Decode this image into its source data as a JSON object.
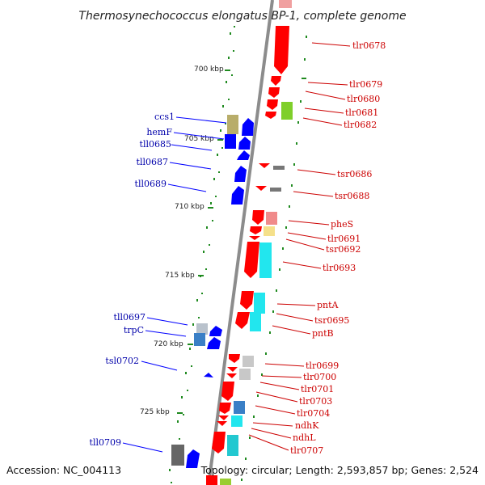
{
  "title": "Thermosynechococcus elongatus BP-1, complete genome",
  "footer": {
    "accession": "Accession: NC_004113",
    "summary": "Topology: circular; Length: 2,593,857 bp; Genes: 2,524"
  },
  "colors": {
    "forward_label": "#cc0000",
    "reverse_label": "#0000aa",
    "forward_gene": "#ff0000",
    "reverse_gene": "#0000ff",
    "backbone": "#8c8c8c",
    "tick": "#1f8a1f"
  },
  "scale_labels": [
    "700 kbp",
    "705 kbp",
    "710 kbp",
    "715 kbp",
    "720 kbp",
    "725 kbp"
  ],
  "reverse_genes": [
    "ccs1",
    "hemF",
    "tll0685",
    "tll0687",
    "tll0689",
    "tll0697",
    "trpC",
    "tsl0702",
    "tll0709"
  ],
  "forward_genes": [
    "tlr0678",
    "tlr0679",
    "tlr0680",
    "tlr0681",
    "tlr0682",
    "tsr0686",
    "tsr0688",
    "pheS",
    "tlr0691",
    "tsr0692",
    "tlr0693",
    "pntA",
    "tsr0695",
    "pntB",
    "tlr0699",
    "tlr0700",
    "tlr0701",
    "tlr0703",
    "tlr0704",
    "ndhK",
    "ndhL",
    "tlr0707"
  ]
}
